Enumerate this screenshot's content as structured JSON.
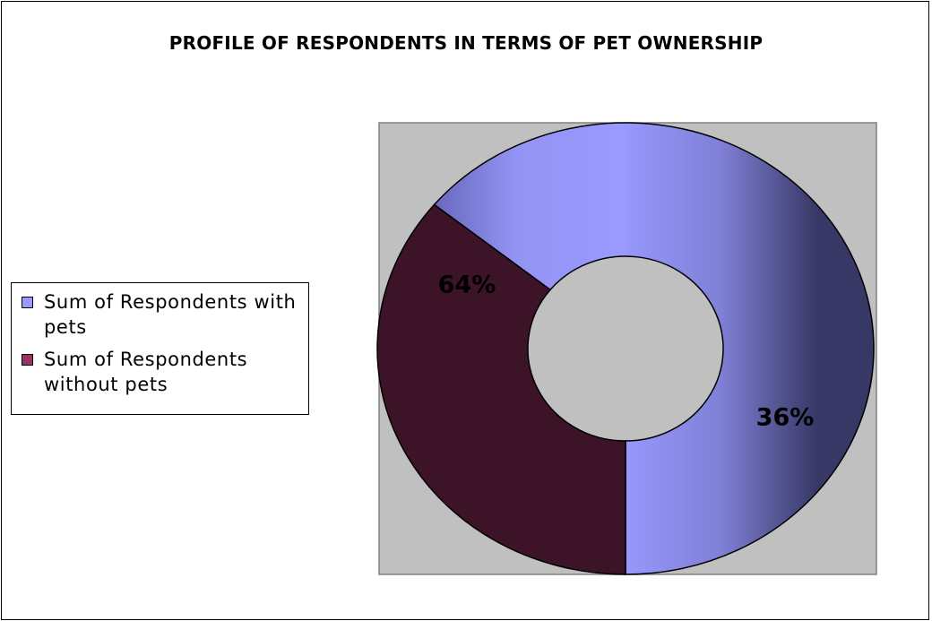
{
  "chart_data": {
    "type": "pie",
    "variant": "donut",
    "title": "PROFILE OF RESPONDENTS IN TERMS OF PET OWNERSHIP",
    "legend_position": "left",
    "plot_background": "#c0c0c0",
    "series": [
      {
        "name": "Sum of Respondents with pets",
        "value": 64,
        "label": "64%",
        "color": "#9999ff"
      },
      {
        "name": "Sum of Respondents without pets",
        "value": 36,
        "label": "36%",
        "color": "#993366"
      }
    ]
  }
}
